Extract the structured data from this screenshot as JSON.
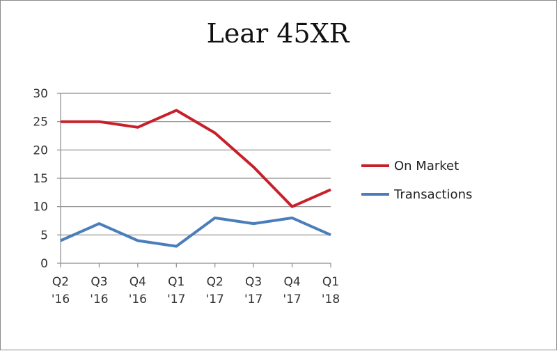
{
  "chart_data": {
    "type": "line",
    "title": "Lear 45XR",
    "categories": [
      [
        "Q2",
        "'16"
      ],
      [
        "Q3",
        "'16"
      ],
      [
        "Q4",
        "'16"
      ],
      [
        "Q1",
        "'17"
      ],
      [
        "Q2",
        "'17"
      ],
      [
        "Q3",
        "'17"
      ],
      [
        "Q4",
        "'17"
      ],
      [
        "Q1",
        "'18"
      ]
    ],
    "series": [
      {
        "name": "On Market",
        "color": "#C8202A",
        "values": [
          25,
          25,
          24,
          27,
          23,
          17,
          10,
          13
        ]
      },
      {
        "name": "Transactions",
        "color": "#4A7EBB",
        "values": [
          4,
          7,
          4,
          3,
          8,
          7,
          8,
          5
        ]
      }
    ],
    "ylim": [
      0,
      30
    ],
    "yticks": [
      0,
      5,
      10,
      15,
      20,
      25,
      30
    ],
    "grid": "horizontal",
    "legend_position": "right"
  }
}
